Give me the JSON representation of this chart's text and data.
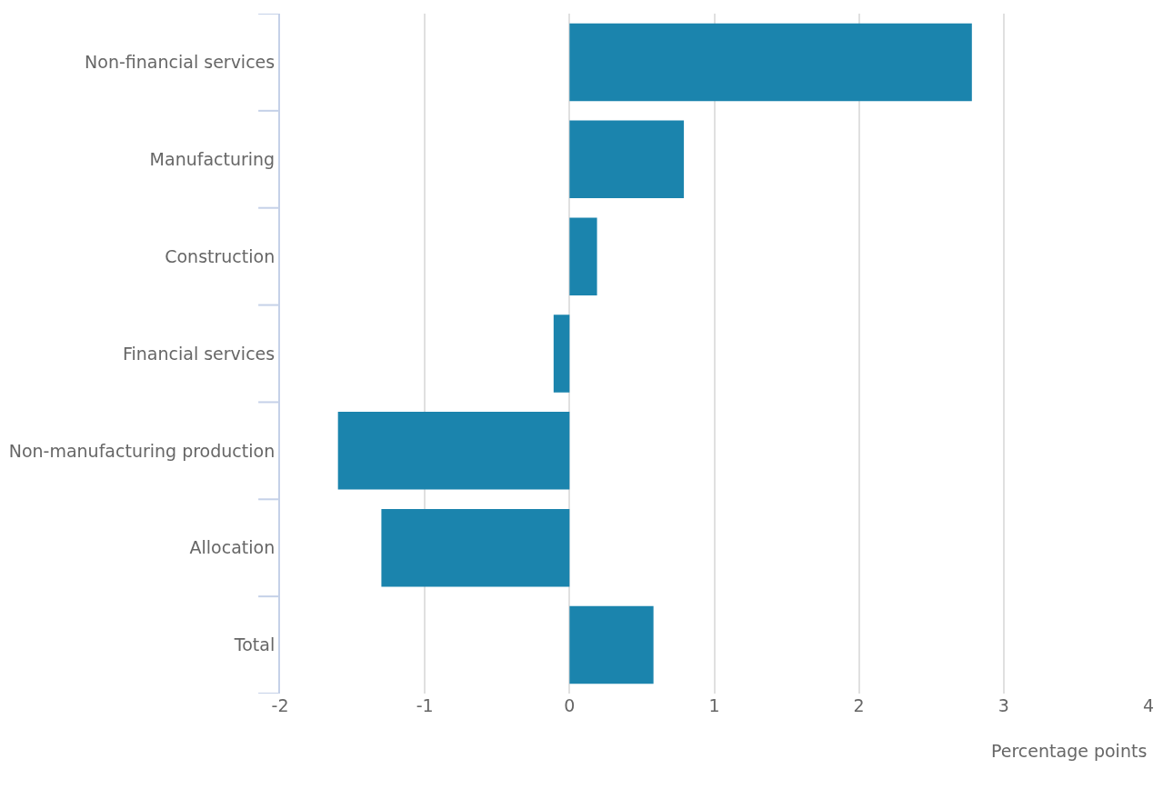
{
  "chart_data": {
    "type": "bar",
    "orientation": "horizontal",
    "categories": [
      "Non-financial services",
      "Manufacturing",
      "Construction",
      "Financial services",
      "Non-manufacturing production",
      "Allocation",
      "Total"
    ],
    "values": [
      2.78,
      0.79,
      0.19,
      -0.11,
      -1.6,
      -1.3,
      0.58
    ],
    "color": "#1b84ad",
    "xlabel": "Percentage points",
    "xlim": [
      -2,
      4
    ],
    "xticks": [
      -2,
      -1,
      0,
      1,
      2,
      3,
      4
    ],
    "grid": "x"
  }
}
